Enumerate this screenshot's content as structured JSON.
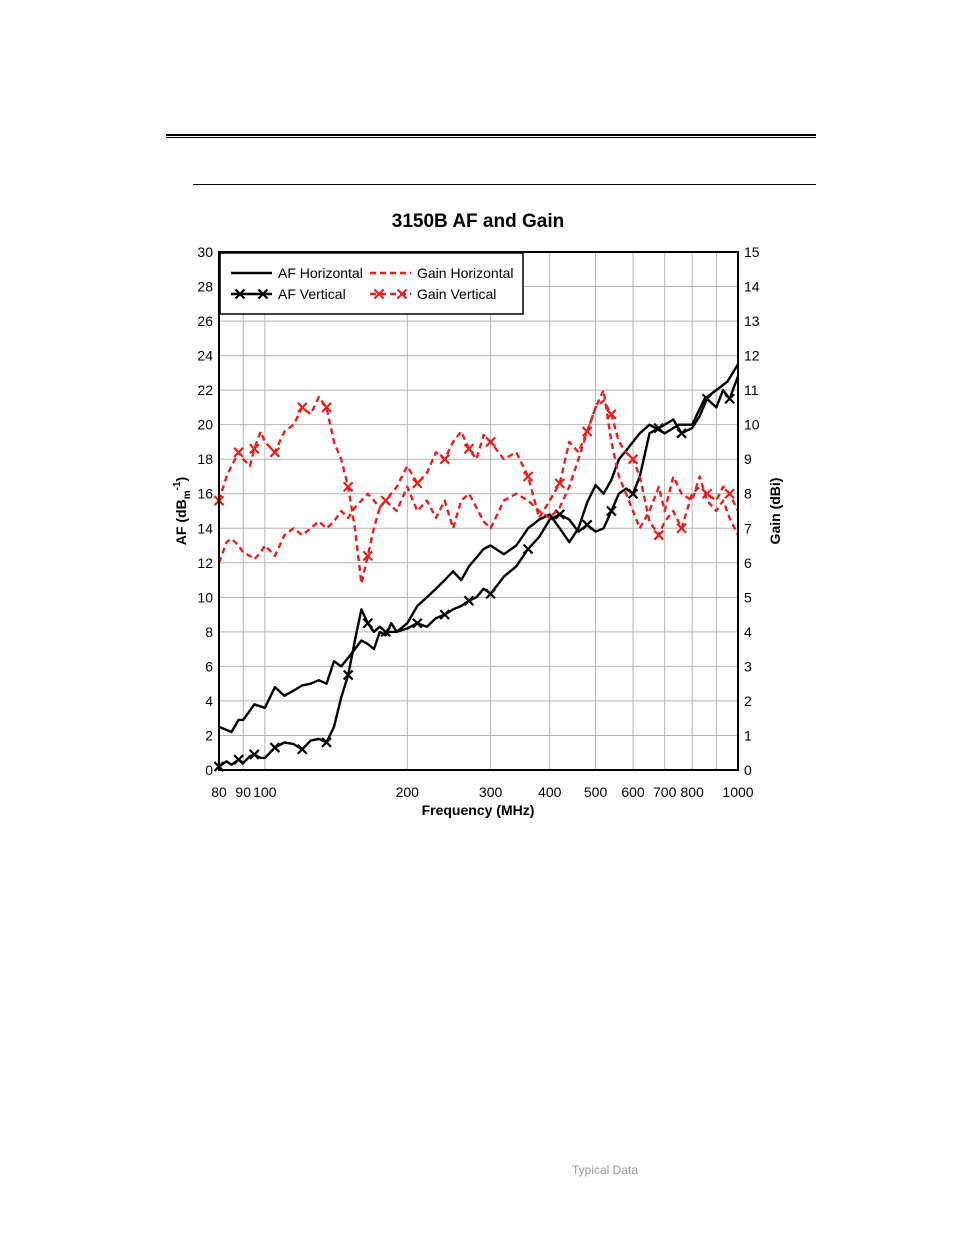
{
  "footer": {
    "note": "Typical Data"
  },
  "chart_data": {
    "type": "line",
    "title": "3150B AF and Gain",
    "xlabel": "Frequency (MHz)",
    "ylabel_left": "AF (dB",
    "ylabel_left_sub": "m",
    "ylabel_left_sup": "-1",
    "ylabel_left_end": ")",
    "ylabel_right": "Gain (dBi)",
    "x_scale": "log",
    "xlim": [
      80,
      1000
    ],
    "ylim_left": [
      0,
      30
    ],
    "ylim_right": [
      0,
      15
    ],
    "grid": true,
    "legend_position": "top-left",
    "x_ticks": [
      80,
      90,
      100,
      200,
      300,
      400,
      500,
      600,
      700,
      800,
      1000
    ],
    "x_tick_labels": [
      "80",
      "90",
      "100",
      "200",
      "300",
      "400",
      "500",
      "600",
      "700",
      "800",
      "1000"
    ],
    "y_left_ticks": [
      0,
      2,
      4,
      6,
      8,
      10,
      12,
      14,
      16,
      18,
      20,
      22,
      24,
      26,
      28,
      30
    ],
    "y_right_ticks": [
      0,
      1,
      2,
      3,
      4,
      5,
      6,
      7,
      8,
      9,
      10,
      11,
      12,
      13,
      14,
      15
    ],
    "series": [
      {
        "name": "AF Horizontal",
        "axis": "left",
        "color": "#000000",
        "style": "solid",
        "marker": "none",
        "x": [
          80,
          85,
          88,
          90,
          95,
          100,
          105,
          110,
          115,
          120,
          125,
          130,
          135,
          140,
          145,
          150,
          155,
          160,
          165,
          170,
          175,
          180,
          185,
          190,
          200,
          210,
          220,
          230,
          240,
          250,
          260,
          270,
          280,
          290,
          300,
          320,
          340,
          360,
          380,
          400,
          420,
          440,
          460,
          480,
          500,
          520,
          540,
          560,
          580,
          600,
          620,
          650,
          700,
          750,
          800,
          850,
          900,
          950,
          1000
        ],
        "y": [
          2.5,
          2.2,
          2.9,
          2.9,
          3.8,
          3.6,
          4.8,
          4.3,
          4.6,
          4.9,
          5.0,
          5.2,
          5.0,
          6.3,
          6.0,
          6.5,
          7.0,
          7.5,
          7.3,
          7.0,
          8.0,
          7.8,
          8.5,
          8.0,
          8.5,
          9.5,
          10.0,
          10.5,
          11.0,
          11.5,
          11.0,
          11.8,
          12.3,
          12.8,
          13.0,
          12.5,
          13.0,
          14.0,
          14.5,
          14.8,
          14.0,
          13.2,
          14.0,
          15.5,
          16.5,
          16.0,
          16.8,
          18.0,
          18.5,
          19.0,
          19.5,
          20.0,
          19.5,
          20.0,
          20.0,
          21.5,
          22.0,
          22.5,
          23.5
        ]
      },
      {
        "name": "AF Vertical",
        "axis": "left",
        "color": "#000000",
        "style": "solid",
        "marker": "x",
        "x": [
          80,
          83,
          85,
          88,
          90,
          93,
          95,
          98,
          100,
          105,
          110,
          115,
          120,
          125,
          130,
          135,
          140,
          145,
          150,
          155,
          160,
          165,
          170,
          175,
          180,
          190,
          200,
          210,
          220,
          230,
          240,
          250,
          260,
          270,
          280,
          290,
          300,
          320,
          340,
          360,
          380,
          400,
          420,
          440,
          460,
          480,
          500,
          520,
          540,
          560,
          580,
          600,
          620,
          650,
          680,
          700,
          730,
          760,
          800,
          830,
          860,
          900,
          930,
          960,
          1000
        ],
        "y": [
          0.2,
          0.5,
          0.3,
          0.6,
          0.4,
          0.8,
          0.9,
          0.7,
          0.7,
          1.3,
          1.6,
          1.5,
          1.2,
          1.7,
          1.8,
          1.6,
          2.5,
          4.2,
          5.5,
          7.5,
          9.3,
          8.5,
          8.0,
          8.3,
          8.0,
          8.0,
          8.2,
          8.5,
          8.3,
          8.8,
          9.0,
          9.3,
          9.5,
          9.8,
          10.0,
          10.5,
          10.2,
          11.2,
          11.8,
          12.8,
          13.5,
          14.5,
          14.8,
          14.5,
          13.8,
          14.2,
          13.8,
          14.0,
          15.0,
          16.0,
          16.3,
          16.0,
          17.0,
          19.5,
          19.8,
          20.0,
          20.3,
          19.5,
          19.8,
          20.5,
          21.5,
          21.0,
          22.0,
          21.5,
          22.8
        ]
      },
      {
        "name": "Gain Horizontal",
        "axis": "right",
        "color": "#e8201c",
        "style": "dashed",
        "marker": "none",
        "x": [
          80,
          83,
          85,
          88,
          90,
          93,
          95,
          98,
          100,
          105,
          110,
          115,
          120,
          125,
          130,
          135,
          140,
          145,
          150,
          155,
          160,
          165,
          170,
          175,
          180,
          190,
          200,
          210,
          220,
          230,
          240,
          250,
          260,
          270,
          280,
          290,
          300,
          320,
          340,
          360,
          380,
          400,
          420,
          440,
          460,
          480,
          500,
          520,
          540,
          560,
          580,
          600,
          620,
          650,
          680,
          700,
          730,
          760,
          800,
          830,
          860,
          900,
          930,
          960,
          1000
        ],
        "y": [
          6.0,
          6.6,
          6.7,
          6.5,
          6.3,
          6.2,
          6.1,
          6.3,
          6.5,
          6.2,
          6.8,
          7.0,
          6.8,
          7.0,
          7.2,
          7.0,
          7.2,
          7.5,
          7.3,
          7.6,
          7.8,
          8.0,
          7.8,
          7.6,
          7.8,
          7.5,
          8.2,
          7.5,
          7.8,
          7.3,
          7.8,
          7.0,
          7.8,
          8.0,
          7.6,
          7.2,
          7.0,
          7.8,
          8.0,
          7.8,
          7.5,
          7.3,
          7.6,
          8.2,
          9.0,
          9.8,
          10.5,
          11.0,
          9.5,
          8.5,
          8.0,
          7.5,
          7.0,
          7.5,
          8.2,
          7.5,
          8.5,
          8.0,
          7.8,
          8.5,
          7.8,
          7.5,
          7.8,
          7.3,
          6.8
        ]
      },
      {
        "name": "Gain Vertical",
        "axis": "right",
        "color": "#e8201c",
        "style": "dashed",
        "marker": "x",
        "x": [
          80,
          83,
          85,
          88,
          90,
          93,
          95,
          98,
          100,
          105,
          110,
          115,
          120,
          125,
          130,
          135,
          140,
          145,
          150,
          155,
          160,
          165,
          170,
          175,
          180,
          190,
          200,
          210,
          220,
          230,
          240,
          250,
          260,
          270,
          280,
          290,
          300,
          320,
          340,
          360,
          380,
          400,
          420,
          440,
          460,
          480,
          500,
          520,
          540,
          560,
          580,
          600,
          620,
          650,
          680,
          700,
          730,
          760,
          800,
          830,
          860,
          900,
          930,
          960,
          1000
        ],
        "y": [
          7.8,
          8.5,
          8.8,
          9.2,
          9.0,
          8.8,
          9.3,
          9.8,
          9.5,
          9.2,
          9.8,
          10.0,
          10.5,
          10.3,
          10.8,
          10.5,
          9.5,
          9.0,
          8.2,
          7.0,
          5.4,
          6.2,
          7.0,
          7.6,
          7.8,
          8.2,
          8.8,
          8.3,
          8.6,
          9.2,
          9.0,
          9.5,
          9.8,
          9.3,
          9.0,
          9.7,
          9.5,
          9.0,
          9.2,
          8.5,
          7.3,
          7.8,
          8.3,
          9.5,
          9.2,
          9.8,
          10.5,
          10.7,
          10.3,
          9.5,
          9.2,
          9.0,
          8.5,
          7.2,
          6.8,
          7.2,
          7.5,
          7.0,
          8.0,
          8.2,
          8.0,
          7.8,
          8.2,
          8.0,
          7.5
        ]
      }
    ]
  }
}
